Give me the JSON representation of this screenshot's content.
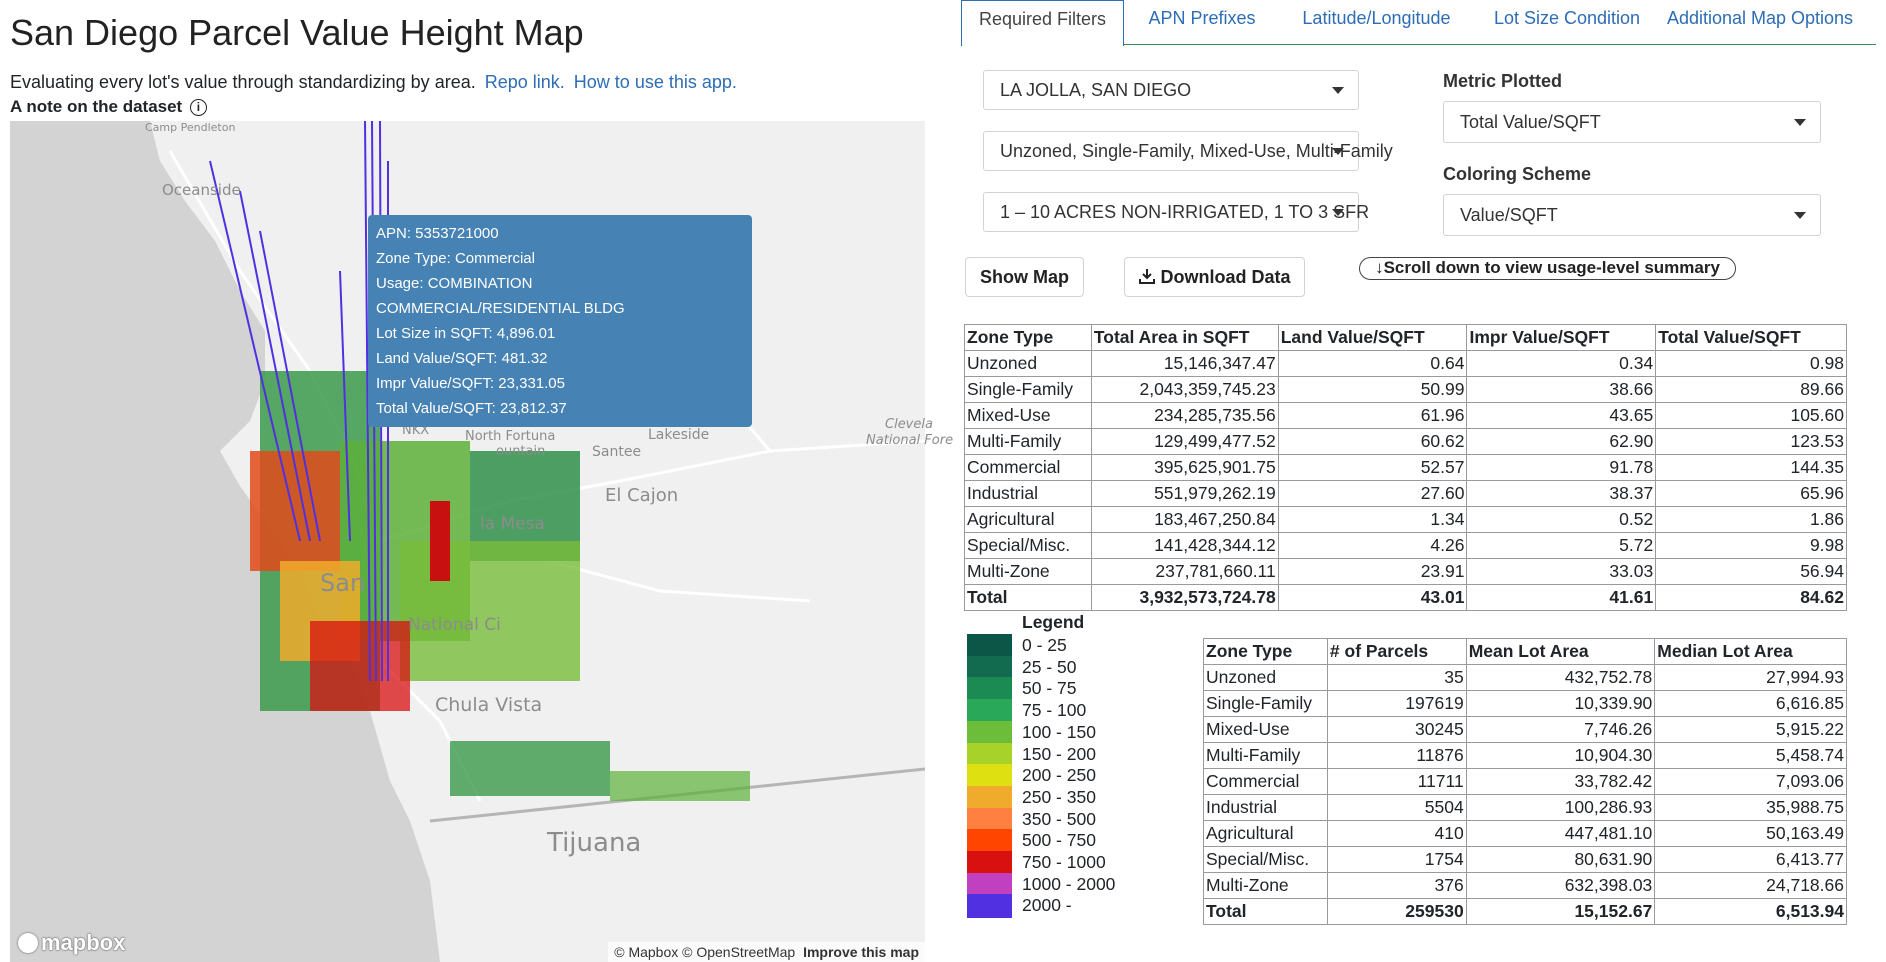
{
  "header": {
    "title": "San Diego Parcel Value Height Map",
    "subtitle": "Evaluating every lot's value through standardizing by area.",
    "repo_link": "Repo link.",
    "howto_link": "How to use this app.",
    "dataset_note": "A note on the dataset",
    "info_icon": "i"
  },
  "map": {
    "labels": {
      "camp_pendleton": "Camp Pendleton",
      "oceanside": "Oceanside",
      "el_cajon": "El Cajon",
      "santee": "Santee",
      "lakeside": "Lakeside",
      "cleveland": "Clevela",
      "national_forest": "National Fore",
      "san_diego": "San",
      "national_city": "National Ci",
      "chula_vista": "Chula Vista",
      "tijuana": "Tijuana",
      "la_mesa": "la Mesa",
      "north_fortuna": "North Fortuna",
      "mountain": "ountain",
      "nkx": "NKX"
    },
    "tooltip": [
      "APN: 5353721000",
      "Zone Type: Commercial",
      "Usage: COMBINATION",
      "COMMERCIAL/RESIDENTIAL BLDG",
      "Lot Size in SQFT: 4,896.01",
      "Land Value/SQFT: 481.32",
      "Impr Value/SQFT: 23,331.05",
      "Total Value/SQFT: 23,812.37"
    ],
    "logo": "mapbox",
    "attribution": "© Mapbox © OpenStreetMap",
    "improve": "Improve this map"
  },
  "tabs": [
    "Required Filters",
    "APN Prefixes",
    "Latitude/Longitude",
    "Lot Size Condition",
    "Additional Map Options"
  ],
  "filters": {
    "city": "LA JOLLA, SAN DIEGO",
    "zones": "Unzoned, Single-Family, Mixed-Use, Multi-Family",
    "usage": "1 – 10 ACRES NON-IRRIGATED, 1 TO 3 SFR",
    "metric_label": "Metric Plotted",
    "metric_value": "Total Value/SQFT",
    "coloring_label": "Coloring Scheme",
    "coloring_value": "Value/SQFT"
  },
  "buttons": {
    "show_map": "Show Map",
    "download": "Download Data",
    "scroll_note": "↓Scroll down to view usage-level summary"
  },
  "summary_table": {
    "headers": [
      "Zone Type",
      "Total Area in SQFT",
      "Land Value/SQFT",
      "Impr Value/SQFT",
      "Total Value/SQFT"
    ],
    "rows": [
      [
        "Unzoned",
        "15,146,347.47",
        "0.64",
        "0.34",
        "0.98"
      ],
      [
        "Single-Family",
        "2,043,359,745.23",
        "50.99",
        "38.66",
        "89.66"
      ],
      [
        "Mixed-Use",
        "234,285,735.56",
        "61.96",
        "43.65",
        "105.60"
      ],
      [
        "Multi-Family",
        "129,499,477.52",
        "60.62",
        "62.90",
        "123.53"
      ],
      [
        "Commercial",
        "395,625,901.75",
        "52.57",
        "91.78",
        "144.35"
      ],
      [
        "Industrial",
        "551,979,262.19",
        "27.60",
        "38.37",
        "65.96"
      ],
      [
        "Agricultural",
        "183,467,250.84",
        "1.34",
        "0.52",
        "1.86"
      ],
      [
        "Special/Misc.",
        "141,428,344.12",
        "4.26",
        "5.72",
        "9.98"
      ],
      [
        "Multi-Zone",
        "237,781,660.11",
        "23.91",
        "33.03",
        "56.94"
      ]
    ],
    "total": [
      "Total",
      "3,932,573,724.78",
      "43.01",
      "41.61",
      "84.62"
    ]
  },
  "legend": {
    "title": "Legend",
    "items": [
      {
        "label": "0 - 25",
        "color": "#0c5647"
      },
      {
        "label": "25 - 50",
        "color": "#136b4f"
      },
      {
        "label": "50 - 75",
        "color": "#1c8a53"
      },
      {
        "label": "75 - 100",
        "color": "#2aa85a"
      },
      {
        "label": "100 - 150",
        "color": "#6cbd3a"
      },
      {
        "label": "150 - 200",
        "color": "#a7d22a"
      },
      {
        "label": "200 - 250",
        "color": "#dfe012"
      },
      {
        "label": "250 - 350",
        "color": "#f0ab2c"
      },
      {
        "label": "350 - 500",
        "color": "#ff8040"
      },
      {
        "label": "500 - 750",
        "color": "#ff4500"
      },
      {
        "label": "750 - 1000",
        "color": "#d81010"
      },
      {
        "label": "1000 - 2000",
        "color": "#c040c0"
      },
      {
        "label": "2000 -",
        "color": "#5030e0"
      }
    ]
  },
  "count_table": {
    "headers": [
      "Zone Type",
      "# of Parcels",
      "Mean Lot Area",
      "Median Lot Area"
    ],
    "rows": [
      [
        "Unzoned",
        "35",
        "432,752.78",
        "27,994.93"
      ],
      [
        "Single-Family",
        "197619",
        "10,339.90",
        "6,616.85"
      ],
      [
        "Mixed-Use",
        "30245",
        "7,746.26",
        "5,915.22"
      ],
      [
        "Multi-Family",
        "11876",
        "10,904.30",
        "5,458.74"
      ],
      [
        "Commercial",
        "11711",
        "33,782.42",
        "7,093.06"
      ],
      [
        "Industrial",
        "5504",
        "100,286.93",
        "35,988.75"
      ],
      [
        "Agricultural",
        "410",
        "447,481.10",
        "50,163.49"
      ],
      [
        "Special/Misc.",
        "1754",
        "80,631.90",
        "6,413.77"
      ],
      [
        "Multi-Zone",
        "376",
        "632,398.03",
        "24,718.66"
      ]
    ],
    "total": [
      "Total",
      "259530",
      "15,152.67",
      "6,513.94"
    ]
  }
}
